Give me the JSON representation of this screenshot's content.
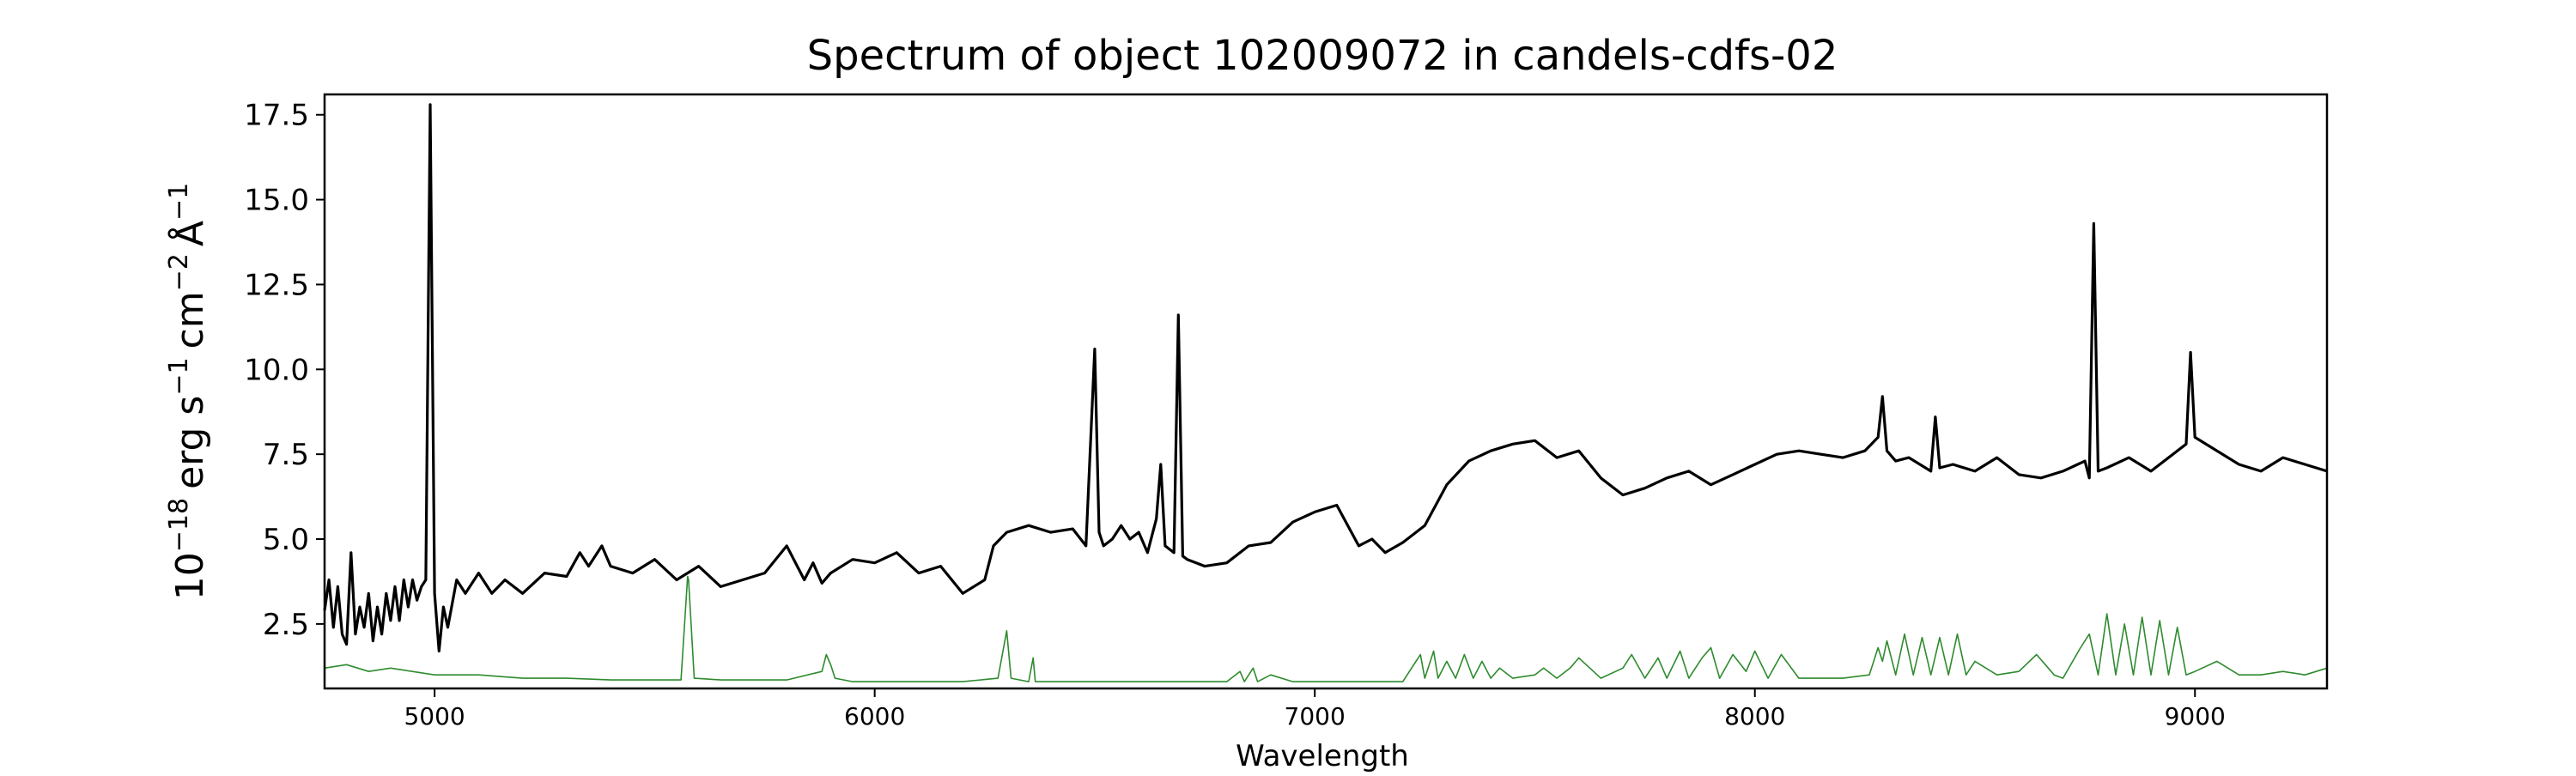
{
  "chart_data": {
    "type": "line",
    "title": "Spectrum of object 102009072 in candels-cdfs-02",
    "xlabel": "Wavelength",
    "ylabel_parts": {
      "base10": "10",
      "exp_flux": "−18",
      "erg": "erg s",
      "exp_s": "−1",
      "cm": "cm",
      "exp_cm": "−2",
      "angstrom": "Å",
      "exp_a": "−1"
    },
    "xlim": [
      4750,
      9300
    ],
    "ylim": [
      0.6,
      18.1
    ],
    "xticks": [
      {
        "value": 5000,
        "label": "5000"
      },
      {
        "value": 6000,
        "label": "6000"
      },
      {
        "value": 7000,
        "label": "7000"
      },
      {
        "value": 8000,
        "label": "8000"
      },
      {
        "value": 9000,
        "label": "9000"
      }
    ],
    "yticks": [
      {
        "value": 2.5,
        "label": "2.5"
      },
      {
        "value": 5.0,
        "label": "5.0"
      },
      {
        "value": 7.5,
        "label": "7.5"
      },
      {
        "value": 10.0,
        "label": "10.0"
      },
      {
        "value": 12.5,
        "label": "12.5"
      },
      {
        "value": 15.0,
        "label": "15.0"
      },
      {
        "value": 17.5,
        "label": "17.5"
      }
    ],
    "grid": false,
    "series": [
      {
        "color": "#000000",
        "style": "line",
        "x": [
          4750,
          4760,
          4770,
          4780,
          4790,
          4800,
          4810,
          4820,
          4830,
          4840,
          4850,
          4860,
          4870,
          4880,
          4890,
          4900,
          4910,
          4920,
          4930,
          4940,
          4950,
          4960,
          4970,
          4980,
          4990,
          5000,
          5010,
          5020,
          5030,
          5050,
          5070,
          5100,
          5130,
          5160,
          5200,
          5250,
          5300,
          5330,
          5350,
          5380,
          5400,
          5450,
          5500,
          5550,
          5600,
          5650,
          5700,
          5750,
          5800,
          5840,
          5860,
          5880,
          5900,
          5950,
          6000,
          6050,
          6100,
          6150,
          6200,
          6250,
          6270,
          6300,
          6350,
          6400,
          6450,
          6480,
          6500,
          6510,
          6520,
          6540,
          6560,
          6580,
          6600,
          6620,
          6640,
          6650,
          6660,
          6680,
          6690,
          6700,
          6710,
          6750,
          6800,
          6850,
          6900,
          6950,
          7000,
          7050,
          7100,
          7130,
          7160,
          7200,
          7250,
          7300,
          7350,
          7400,
          7450,
          7500,
          7550,
          7600,
          7650,
          7700,
          7750,
          7800,
          7850,
          7900,
          7950,
          8000,
          8050,
          8100,
          8150,
          8200,
          8250,
          8280,
          8290,
          8300,
          8320,
          8350,
          8400,
          8410,
          8420,
          8450,
          8500,
          8550,
          8600,
          8650,
          8700,
          8750,
          8760,
          8770,
          8780,
          8800,
          8850,
          8900,
          8950,
          8980,
          8990,
          9000,
          9050,
          9100,
          9150,
          9200,
          9250,
          9300
        ],
        "y": [
          2.9,
          3.8,
          2.4,
          3.6,
          2.2,
          1.9,
          4.6,
          2.2,
          3.0,
          2.4,
          3.4,
          2.0,
          3.0,
          2.2,
          3.4,
          2.6,
          3.6,
          2.6,
          3.8,
          3.0,
          3.8,
          3.2,
          3.6,
          3.8,
          17.8,
          3.4,
          1.7,
          3.0,
          2.4,
          3.8,
          3.4,
          4.0,
          3.4,
          3.8,
          3.4,
          4.0,
          3.9,
          4.6,
          4.2,
          4.8,
          4.2,
          4.0,
          4.4,
          3.8,
          4.2,
          3.6,
          3.8,
          4.0,
          4.8,
          3.8,
          4.3,
          3.7,
          4.0,
          4.4,
          4.3,
          4.6,
          4.0,
          4.2,
          3.4,
          3.8,
          4.8,
          5.2,
          5.4,
          5.2,
          5.3,
          4.8,
          10.6,
          5.2,
          4.8,
          5.0,
          5.4,
          5.0,
          5.2,
          4.6,
          5.6,
          7.2,
          4.8,
          4.6,
          11.6,
          4.5,
          4.4,
          4.2,
          4.3,
          4.8,
          4.9,
          5.5,
          5.8,
          6.0,
          4.8,
          5.0,
          4.6,
          4.9,
          5.4,
          6.6,
          7.3,
          7.6,
          7.8,
          7.9,
          7.4,
          7.6,
          6.8,
          6.3,
          6.5,
          6.8,
          7.0,
          6.6,
          6.9,
          7.2,
          7.5,
          7.6,
          7.5,
          7.4,
          7.6,
          8.0,
          9.2,
          7.6,
          7.3,
          7.4,
          7.0,
          8.6,
          7.1,
          7.2,
          7.0,
          7.4,
          6.9,
          6.8,
          7.0,
          7.3,
          6.8,
          14.3,
          7.0,
          7.1,
          7.4,
          7.0,
          7.5,
          7.8,
          10.5,
          8.0,
          7.6,
          7.2,
          7.0,
          7.4,
          7.2,
          7.0
        ]
      },
      {
        "color": "#2e8b2e",
        "style": "thin",
        "x": [
          4750,
          4800,
          4850,
          4900,
          5000,
          5100,
          5200,
          5300,
          5400,
          5500,
          5560,
          5575,
          5577,
          5590,
          5650,
          5700,
          5800,
          5880,
          5890,
          5900,
          5910,
          5950,
          6000,
          6100,
          6200,
          6280,
          6290,
          6300,
          6310,
          6350,
          6360,
          6365,
          6380,
          6400,
          6500,
          6600,
          6700,
          6800,
          6830,
          6840,
          6860,
          6870,
          6900,
          6950,
          7000,
          7100,
          7200,
          7240,
          7250,
          7270,
          7280,
          7300,
          7320,
          7340,
          7360,
          7380,
          7400,
          7420,
          7450,
          7500,
          7520,
          7550,
          7580,
          7600,
          7650,
          7700,
          7720,
          7750,
          7780,
          7800,
          7830,
          7850,
          7880,
          7900,
          7920,
          7950,
          7980,
          8000,
          8030,
          8060,
          8100,
          8200,
          8260,
          8280,
          8290,
          8300,
          8320,
          8340,
          8360,
          8380,
          8400,
          8420,
          8440,
          8460,
          8480,
          8500,
          8550,
          8600,
          8640,
          8660,
          8680,
          8700,
          8740,
          8760,
          8780,
          8800,
          8820,
          8840,
          8860,
          8880,
          8900,
          8920,
          8940,
          8960,
          8980,
          9000,
          9050,
          9100,
          9150,
          9200,
          9250,
          9300
        ],
        "y": [
          1.2,
          1.3,
          1.1,
          1.2,
          1.0,
          1.0,
          0.9,
          0.9,
          0.85,
          0.85,
          0.85,
          3.9,
          3.8,
          0.9,
          0.85,
          0.85,
          0.85,
          1.1,
          1.6,
          1.3,
          0.9,
          0.8,
          0.8,
          0.8,
          0.8,
          0.9,
          1.6,
          2.3,
          0.9,
          0.8,
          1.5,
          0.8,
          0.8,
          0.8,
          0.8,
          0.8,
          0.8,
          0.8,
          1.1,
          0.8,
          1.2,
          0.8,
          1.0,
          0.8,
          0.8,
          0.8,
          0.8,
          1.6,
          0.9,
          1.7,
          0.9,
          1.4,
          0.9,
          1.6,
          0.9,
          1.4,
          0.9,
          1.2,
          0.9,
          1.0,
          1.2,
          0.9,
          1.2,
          1.5,
          0.9,
          1.2,
          1.6,
          0.9,
          1.5,
          0.9,
          1.7,
          0.9,
          1.5,
          1.8,
          0.9,
          1.6,
          1.1,
          1.7,
          0.9,
          1.6,
          0.9,
          0.9,
          1.0,
          1.8,
          1.4,
          2.0,
          1.0,
          2.2,
          1.0,
          2.1,
          1.0,
          2.1,
          1.0,
          2.2,
          1.0,
          1.4,
          1.0,
          1.1,
          1.6,
          1.3,
          1.0,
          0.9,
          1.8,
          2.2,
          1.0,
          2.8,
          1.0,
          2.5,
          1.0,
          2.7,
          1.0,
          2.6,
          1.0,
          2.4,
          1.0,
          1.1,
          1.4,
          1.0,
          1.0,
          1.1,
          1.0,
          1.2
        ]
      }
    ]
  }
}
